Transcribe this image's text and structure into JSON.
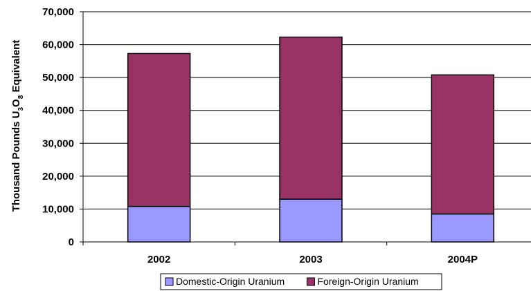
{
  "chart_data": {
    "type": "bar",
    "stacked": true,
    "categories": [
      "2002",
      "2003",
      "2004P"
    ],
    "series": [
      {
        "name": "Domestic-Origin Uranium",
        "values": [
          10800,
          13000,
          8500
        ],
        "color": "#9999ff"
      },
      {
        "name": "Foreign-Origin Uranium",
        "values": [
          46500,
          49300,
          42300
        ],
        "color": "#993366"
      }
    ],
    "totals": [
      57300,
      62300,
      50800
    ],
    "ylabel_parts": {
      "prefix": "Thousand Pounds U",
      "sub1": "3",
      "mid": "O",
      "sub2": "8",
      "suffix": " Equivalent"
    },
    "ylim": [
      0,
      70000
    ],
    "yticks": [
      "0",
      "10,000",
      "20,000",
      "30,000",
      "40,000",
      "50,000",
      "60,000",
      "70,000"
    ],
    "ytick_values": [
      0,
      10000,
      20000,
      30000,
      40000,
      50000,
      60000,
      70000
    ],
    "grid": true,
    "legend_position": "bottom"
  }
}
